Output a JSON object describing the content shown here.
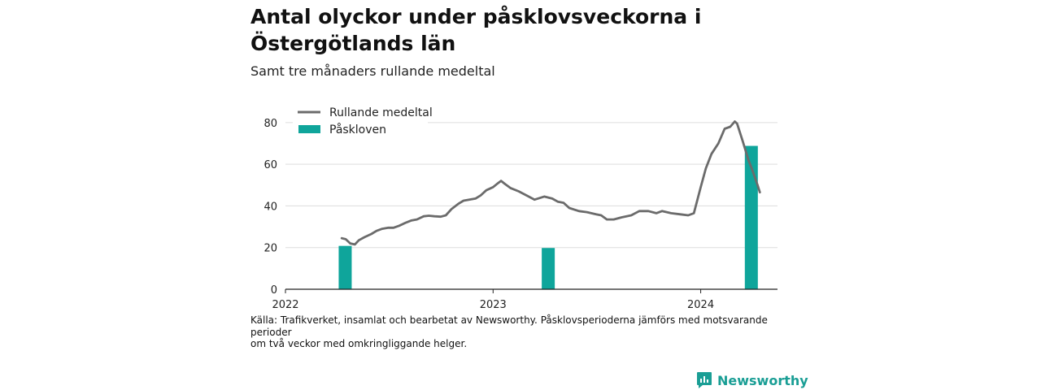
{
  "title": "Antal olyckor under påsklovsveckorna i Östergötlands län",
  "subtitle": "Samt tre månaders rullande medeltal",
  "source_lines": [
    "Källa: Trafikverket, insamlat och bearbetat av Newsworthy. Påsklovsperioderna jämförs med motsvarande perioder",
    "om två veckor med omkringliggande helger."
  ],
  "brand": {
    "name": "Newsworthy",
    "logo_icon": "newsworthy-logo-icon"
  },
  "colors": {
    "line": "#6b6b6b",
    "bar": "#0fa59b",
    "grid": "#dddddd",
    "axis": "#222222",
    "brand": "#1a9e95"
  },
  "chart_data": {
    "type": "bar+line",
    "grid": true,
    "legend_placement": "top-left",
    "xlim": [
      "2022-01-01",
      "2024-05-15"
    ],
    "ylim": [
      0,
      85
    ],
    "x_ticks": [
      "2022",
      "2023",
      "2024"
    ],
    "y_ticks": [
      0,
      20,
      40,
      60,
      80
    ],
    "series": [
      {
        "name": "Rullande medeltal",
        "kind": "line",
        "points": [
          [
            "2022-04-10",
            24.5
          ],
          [
            "2022-04-17",
            24
          ],
          [
            "2022-04-25",
            22
          ],
          [
            "2022-05-03",
            21.5
          ],
          [
            "2022-05-10",
            23.5
          ],
          [
            "2022-05-20",
            25
          ],
          [
            "2022-06-01",
            26.5
          ],
          [
            "2022-06-10",
            28
          ],
          [
            "2022-06-20",
            29
          ],
          [
            "2022-07-01",
            29.5
          ],
          [
            "2022-07-10",
            29.5
          ],
          [
            "2022-07-20",
            30.5
          ],
          [
            "2022-08-01",
            32
          ],
          [
            "2022-08-10",
            33
          ],
          [
            "2022-08-20",
            33.5
          ],
          [
            "2022-09-01",
            35
          ],
          [
            "2022-09-10",
            35.3
          ],
          [
            "2022-09-20",
            35
          ],
          [
            "2022-10-01",
            34.8
          ],
          [
            "2022-10-10",
            35.5
          ],
          [
            "2022-10-20",
            38.5
          ],
          [
            "2022-11-01",
            41
          ],
          [
            "2022-11-10",
            42.5
          ],
          [
            "2022-11-20",
            43
          ],
          [
            "2022-12-01",
            43.5
          ],
          [
            "2022-12-10",
            45
          ],
          [
            "2022-12-20",
            47.5
          ],
          [
            "2023-01-01",
            49
          ],
          [
            "2023-01-10",
            51
          ],
          [
            "2023-01-15",
            52
          ],
          [
            "2023-01-22",
            50.5
          ],
          [
            "2023-02-01",
            48.5
          ],
          [
            "2023-02-15",
            47
          ],
          [
            "2023-03-01",
            45
          ],
          [
            "2023-03-15",
            43
          ],
          [
            "2023-04-01",
            44.5
          ],
          [
            "2023-04-15",
            43.5
          ],
          [
            "2023-04-25",
            42
          ],
          [
            "2023-05-05",
            41.5
          ],
          [
            "2023-05-15",
            39
          ],
          [
            "2023-06-01",
            37.5
          ],
          [
            "2023-06-15",
            37
          ],
          [
            "2023-07-01",
            36
          ],
          [
            "2023-07-10",
            35.5
          ],
          [
            "2023-07-20",
            33.5
          ],
          [
            "2023-08-01",
            33.5
          ],
          [
            "2023-08-15",
            34.5
          ],
          [
            "2023-09-01",
            35.5
          ],
          [
            "2023-09-15",
            37.5
          ],
          [
            "2023-10-01",
            37.5
          ],
          [
            "2023-10-15",
            36.5
          ],
          [
            "2023-10-25",
            37.5
          ],
          [
            "2023-11-10",
            36.5
          ],
          [
            "2023-11-25",
            36
          ],
          [
            "2023-12-10",
            35.5
          ],
          [
            "2023-12-20",
            36.5
          ],
          [
            "2024-01-01",
            49
          ],
          [
            "2024-01-10",
            58
          ],
          [
            "2024-01-20",
            65
          ],
          [
            "2024-02-01",
            70
          ],
          [
            "2024-02-12",
            77
          ],
          [
            "2024-02-22",
            78
          ],
          [
            "2024-03-01",
            80.5
          ],
          [
            "2024-03-05",
            79.5
          ],
          [
            "2024-03-15",
            71
          ],
          [
            "2024-03-25",
            62
          ],
          [
            "2024-04-01",
            57
          ],
          [
            "2024-04-10",
            50
          ],
          [
            "2024-04-14",
            46.5
          ]
        ]
      },
      {
        "name": "Påskloven",
        "kind": "bar",
        "points": [
          [
            "2022-04-16",
            20.8
          ],
          [
            "2023-04-08",
            19.8
          ],
          [
            "2024-03-30",
            68.8
          ]
        ]
      }
    ]
  }
}
